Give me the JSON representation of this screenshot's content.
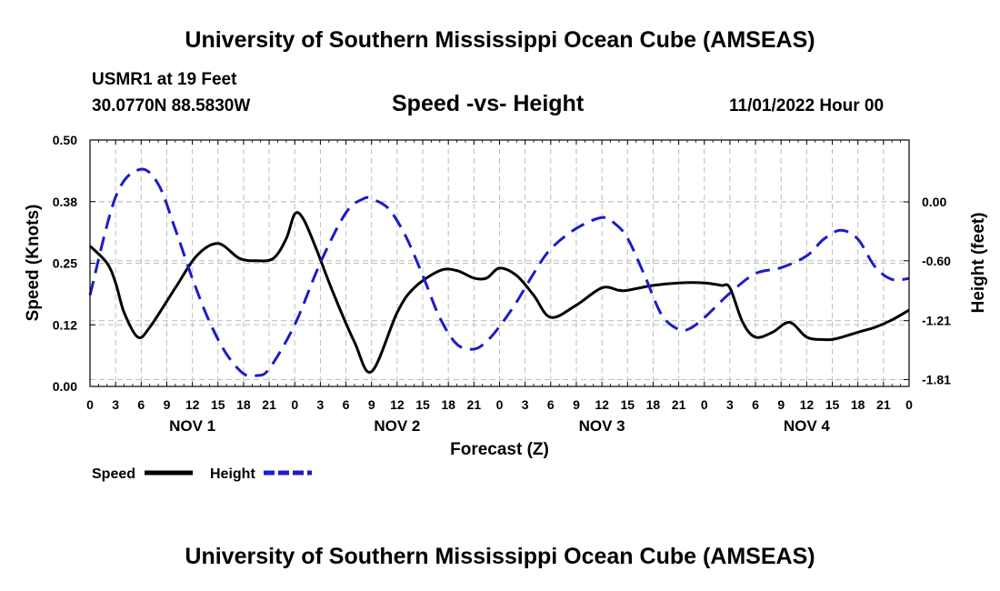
{
  "header": {
    "title": "University of Southern Mississippi Ocean Cube (AMSEAS)",
    "station": "USMR1 at 19 Feet",
    "coords": "30.0770N  88.5830W",
    "chart_title": "Speed -vs- Height",
    "date": "11/01/2022 Hour 00"
  },
  "footer": {
    "title": "University of Southern Mississippi Ocean Cube (AMSEAS)"
  },
  "colors": {
    "speed": "#000000",
    "height": "#1c1cc8",
    "grid": "#bdbdbd"
  },
  "chart_data": {
    "type": "line",
    "title": "Speed -vs- Height",
    "xlabel": "Forecast (Z)",
    "ylabel": "Speed (Knots)",
    "y2label": "Height (feet)",
    "x_ticks": [
      "0",
      "3",
      "6",
      "9",
      "12",
      "15",
      "18",
      "21",
      "0",
      "3",
      "6",
      "9",
      "12",
      "15",
      "18",
      "21",
      "0",
      "3",
      "6",
      "9",
      "12",
      "15",
      "18",
      "21",
      "0",
      "3",
      "6",
      "9",
      "12",
      "15",
      "18",
      "21",
      "0"
    ],
    "x_days": [
      "NOV 1",
      "NOV 2",
      "NOV 3",
      "NOV 4"
    ],
    "xlim": [
      0,
      96
    ],
    "ylim": [
      0,
      0.5
    ],
    "y_ticks": [
      "0.00",
      "0.12",
      "0.25",
      "0.38",
      "0.50"
    ],
    "y_tick_values": [
      0,
      0.125,
      0.25,
      0.375,
      0.5
    ],
    "y2lim": [
      -1.88,
      0.63
    ],
    "y2_ticks": [
      "0.00",
      "-0.60",
      "-1.21",
      "-1.81"
    ],
    "y2_tick_values": [
      0,
      -0.6,
      -1.21,
      -1.81
    ],
    "series": [
      {
        "name": "Speed",
        "axis": "left",
        "style": "solid",
        "x": [
          0,
          2,
          3,
          4,
          5.6,
          7,
          10,
          12.5,
          15,
          17.5,
          19.5,
          21.5,
          23,
          24,
          25,
          26.5,
          28.5,
          31,
          33,
          36,
          38,
          41,
          43,
          45,
          46.5,
          48,
          50,
          52,
          54,
          57,
          60,
          62,
          63,
          66,
          69,
          72,
          74,
          75,
          76.5,
          78,
          80,
          82,
          84,
          86,
          87.5,
          90,
          92,
          94,
          96
        ],
        "y": [
          0.285,
          0.25,
          0.21,
          0.15,
          0.1,
          0.12,
          0.2,
          0.265,
          0.29,
          0.26,
          0.255,
          0.26,
          0.3,
          0.35,
          0.34,
          0.28,
          0.19,
          0.09,
          0.03,
          0.15,
          0.2,
          0.235,
          0.235,
          0.22,
          0.22,
          0.24,
          0.225,
          0.185,
          0.14,
          0.165,
          0.2,
          0.195,
          0.195,
          0.205,
          0.21,
          0.21,
          0.205,
          0.2,
          0.13,
          0.1,
          0.11,
          0.13,
          0.1,
          0.095,
          0.097,
          0.11,
          0.12,
          0.135,
          0.155
        ]
      },
      {
        "name": "Height",
        "axis": "right",
        "style": "dashed",
        "x": [
          0,
          3,
          5.8,
          8,
          10,
          12,
          14,
          16,
          18,
          19.5,
          21,
          24,
          27,
          30,
          32,
          33,
          35,
          37,
          39,
          41,
          43,
          45,
          46.5,
          48,
          50,
          52,
          54,
          57,
          60,
          61.5,
          63,
          65,
          67,
          69,
          70.3,
          72,
          75,
          78,
          81,
          84,
          86,
          88,
          90,
          92,
          94,
          96
        ],
        "y": [
          -0.95,
          0.05,
          0.33,
          0.18,
          -0.28,
          -0.78,
          -1.22,
          -1.55,
          -1.75,
          -1.77,
          -1.7,
          -1.25,
          -0.62,
          -0.11,
          0.03,
          0.03,
          -0.07,
          -0.35,
          -0.75,
          -1.18,
          -1.45,
          -1.5,
          -1.42,
          -1.27,
          -1.02,
          -0.73,
          -0.48,
          -0.27,
          -0.16,
          -0.22,
          -0.37,
          -0.75,
          -1.15,
          -1.3,
          -1.29,
          -1.18,
          -0.93,
          -0.73,
          -0.67,
          -0.55,
          -0.38,
          -0.29,
          -0.38,
          -0.66,
          -0.79,
          -0.78
        ]
      }
    ],
    "legend": [
      {
        "label": "Speed",
        "style": "solid"
      },
      {
        "label": "Height",
        "style": "dashed"
      }
    ],
    "grid": true
  }
}
